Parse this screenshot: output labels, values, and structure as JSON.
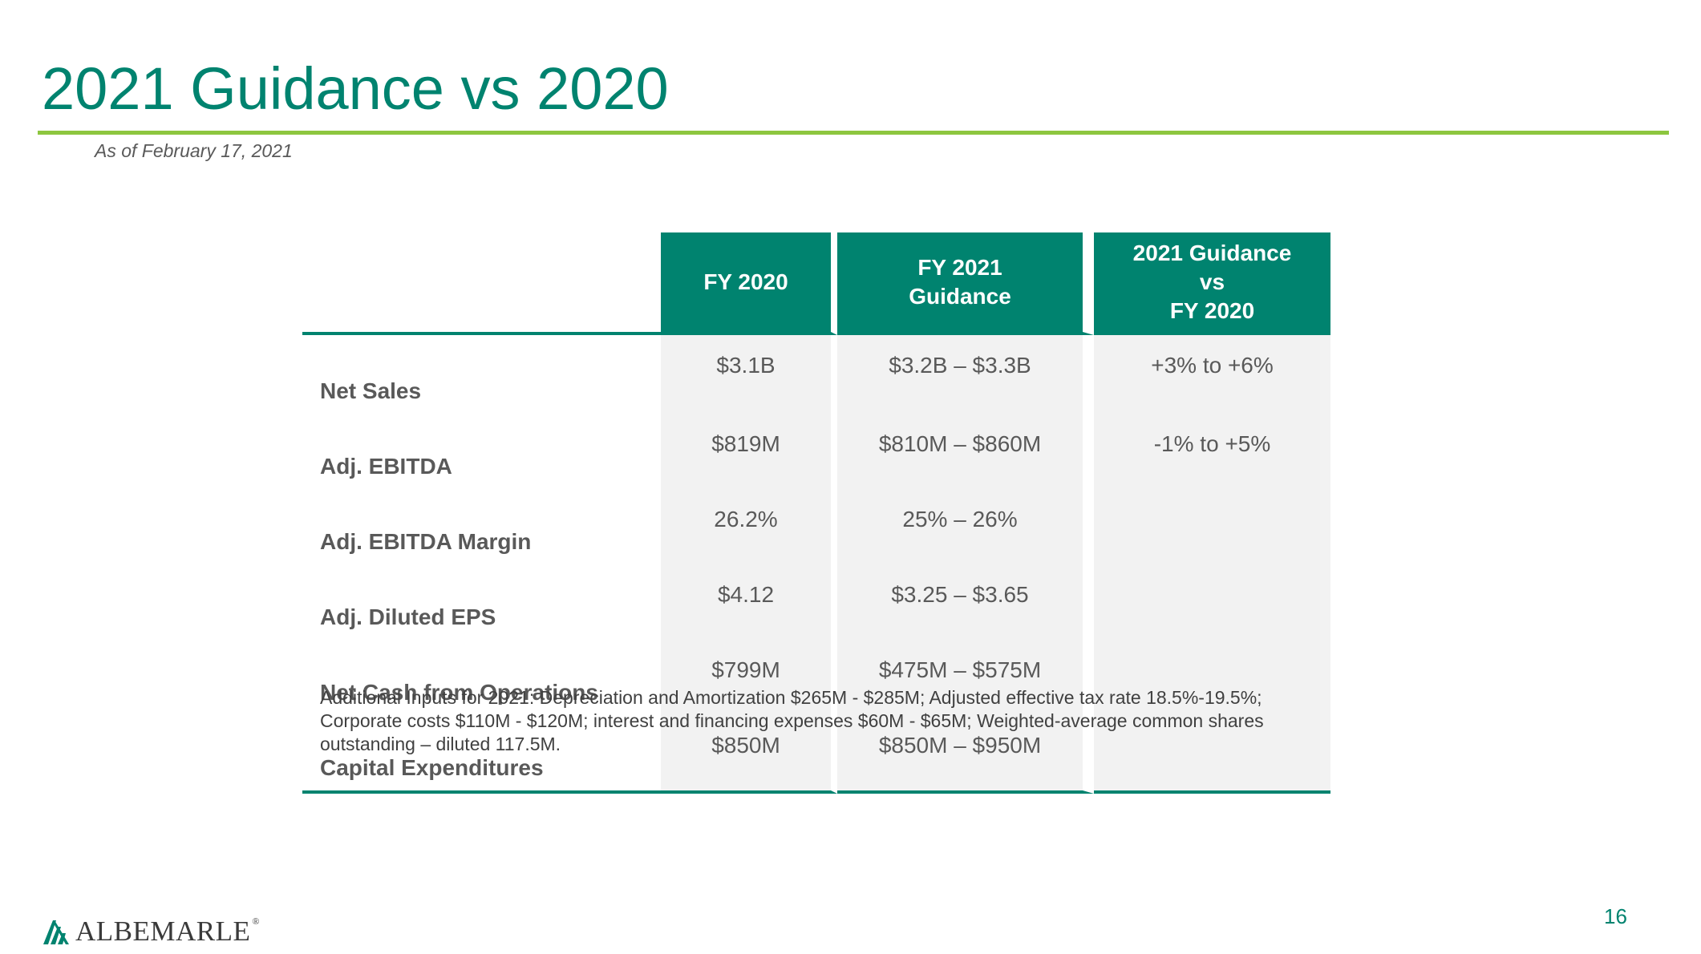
{
  "slide": {
    "title": "2021 Guidance vs 2020",
    "subtitle": "As of February 17, 2021",
    "page_number": "16"
  },
  "colors": {
    "brand_green": "#00836f",
    "accent_lime": "#8dc63f",
    "cell_shade": "#f2f2f2",
    "text_gray": "#595959"
  },
  "table": {
    "headers": {
      "fy2020": [
        "FY 2020"
      ],
      "fy2021": [
        "FY 2021",
        "Guidance"
      ],
      "delta": [
        "2021 Guidance",
        "vs",
        "FY 2020"
      ]
    },
    "rows": [
      {
        "label": "Net Sales",
        "fy2020": "$3.1B",
        "fy2021": "$3.2B – $3.3B",
        "delta": "+3% to +6%"
      },
      {
        "label": "Adj. EBITDA",
        "fy2020": "$819M",
        "fy2021": "$810M – $860M",
        "delta": "-1% to +5%"
      },
      {
        "label": "Adj. EBITDA Margin",
        "fy2020": "26.2%",
        "fy2021": "25% – 26%",
        "delta": ""
      },
      {
        "label": "Adj. Diluted EPS",
        "fy2020": "$4.12",
        "fy2021": "$3.25 – $3.65",
        "delta": ""
      },
      {
        "label": "Net Cash from Operations",
        "fy2020": "$799M",
        "fy2021": "$475M – $575M",
        "delta": ""
      },
      {
        "label": "Capital Expenditures",
        "fy2020": "$850M",
        "fy2021": "$850M – $950M",
        "delta": ""
      }
    ]
  },
  "footnote": "Additional Inputs for 2021: Depreciation and Amortization $265M - $285M; Adjusted effective tax rate 18.5%-19.5%; Corporate costs $110M - $120M; interest and financing expenses $60M - $65M; Weighted-average common shares outstanding – diluted 117.5M.",
  "logo": {
    "icon": "albemarle-logo-icon",
    "wordmark": "ALBEMARLE",
    "registered": "®"
  }
}
